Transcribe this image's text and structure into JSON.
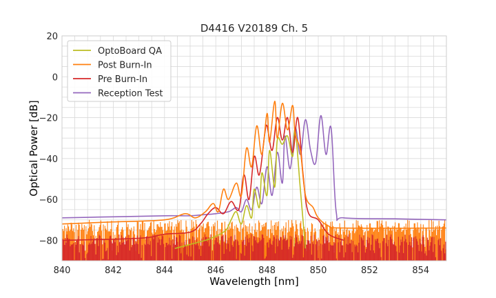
{
  "chart_data": {
    "type": "line",
    "title": "D4416 V20189 Ch. 5",
    "xlabel": "Wavelength [nm]",
    "ylabel": "Optical Power [dB]",
    "xlim": [
      840,
      855
    ],
    "ylim": [
      -90,
      20
    ],
    "xticks": [
      840,
      842,
      844,
      846,
      848,
      850,
      852,
      854
    ],
    "xtick_labels": [
      "840",
      "842",
      "844",
      "846",
      "848",
      "850",
      "852",
      "854"
    ],
    "yticks": [
      20,
      0,
      -20,
      -40,
      -60,
      -80
    ],
    "ytick_labels": [
      "20",
      "0",
      "−20",
      "−40",
      "−60",
      "−80"
    ],
    "grid": true,
    "legend_position": "top-left",
    "series": [
      {
        "name": "OptoBoard QA",
        "color": "#bcbd22",
        "noise_floor": {
          "x_range": [
            844.4,
            849.5
          ],
          "level": -83
        },
        "x": [
          844.4,
          845.0,
          845.6,
          846.0,
          846.4,
          846.6,
          846.8,
          847.0,
          847.2,
          847.4,
          847.5,
          847.7,
          847.8,
          848.0,
          848.1,
          848.3,
          848.4,
          848.6,
          848.8,
          849.0,
          849.1,
          849.3,
          849.5
        ],
        "y": [
          -84,
          -82,
          -80,
          -78,
          -75,
          -70,
          -66,
          -72,
          -63,
          -69,
          -55,
          -64,
          -47,
          -58,
          -36,
          -54,
          -31,
          -33,
          -29,
          -39,
          -26,
          -55,
          -84
        ]
      },
      {
        "name": "Post Burn-In",
        "color": "#ff7f0e",
        "noise_floor": {
          "x_range": [
            840.0,
            855.0
          ],
          "level": -75
        },
        "x": [
          840.0,
          842.0,
          844.0,
          844.8,
          845.2,
          845.6,
          845.9,
          846.1,
          846.3,
          846.5,
          846.8,
          847.0,
          847.2,
          847.4,
          847.6,
          847.8,
          848.0,
          848.1,
          848.3,
          848.4,
          848.6,
          848.8,
          849.0,
          849.1,
          849.3,
          849.5,
          849.8,
          850.0,
          850.4,
          851.0,
          855.0
        ],
        "y": [
          -72,
          -71,
          -70,
          -67,
          -69,
          -66,
          -62,
          -66,
          -55,
          -60,
          -52,
          -58,
          -35,
          -44,
          -24,
          -38,
          -18,
          -32,
          -12,
          -30,
          -13,
          -26,
          -14,
          -28,
          -36,
          -58,
          -64,
          -69,
          -73,
          -74,
          -74
        ]
      },
      {
        "name": "Pre Burn-In",
        "color": "#d62728",
        "noise_floor": {
          "x_range": [
            840.0,
            855.0
          ],
          "level": -82
        },
        "x": [
          840.0,
          843.0,
          844.0,
          845.0,
          845.4,
          845.7,
          846.0,
          846.3,
          846.6,
          846.9,
          847.1,
          847.3,
          847.5,
          847.7,
          847.9,
          848.0,
          848.2,
          848.4,
          848.6,
          848.8,
          849.0,
          849.2,
          849.4,
          849.6,
          850.0,
          850.4,
          851.0
        ],
        "y": [
          -80,
          -79,
          -77,
          -76,
          -72,
          -67,
          -64,
          -67,
          -61,
          -65,
          -48,
          -60,
          -39,
          -48,
          -29,
          -24,
          -36,
          -20,
          -31,
          -20,
          -37,
          -20,
          -47,
          -66,
          -70,
          -77,
          -80
        ]
      },
      {
        "name": "Reception Test",
        "color": "#9467bd",
        "x": [
          840.0,
          842.0,
          844.0,
          845.0,
          845.5,
          846.0,
          846.5,
          846.8,
          847.0,
          847.2,
          847.4,
          847.6,
          847.8,
          848.0,
          848.2,
          848.4,
          848.6,
          848.7,
          848.9,
          849.1,
          849.3,
          849.5,
          849.7,
          849.9,
          850.1,
          850.3,
          850.5,
          850.7,
          851.0,
          853.0,
          855.0
        ],
        "y": [
          -69,
          -68.5,
          -68,
          -68,
          -67.5,
          -67,
          -66,
          -64,
          -66,
          -60,
          -65,
          -54,
          -62,
          -44,
          -58,
          -37,
          -52,
          -29,
          -45,
          -25,
          -38,
          -21,
          -36,
          -42,
          -19,
          -38,
          -25,
          -66,
          -69,
          -69.5,
          -70
        ]
      }
    ]
  }
}
